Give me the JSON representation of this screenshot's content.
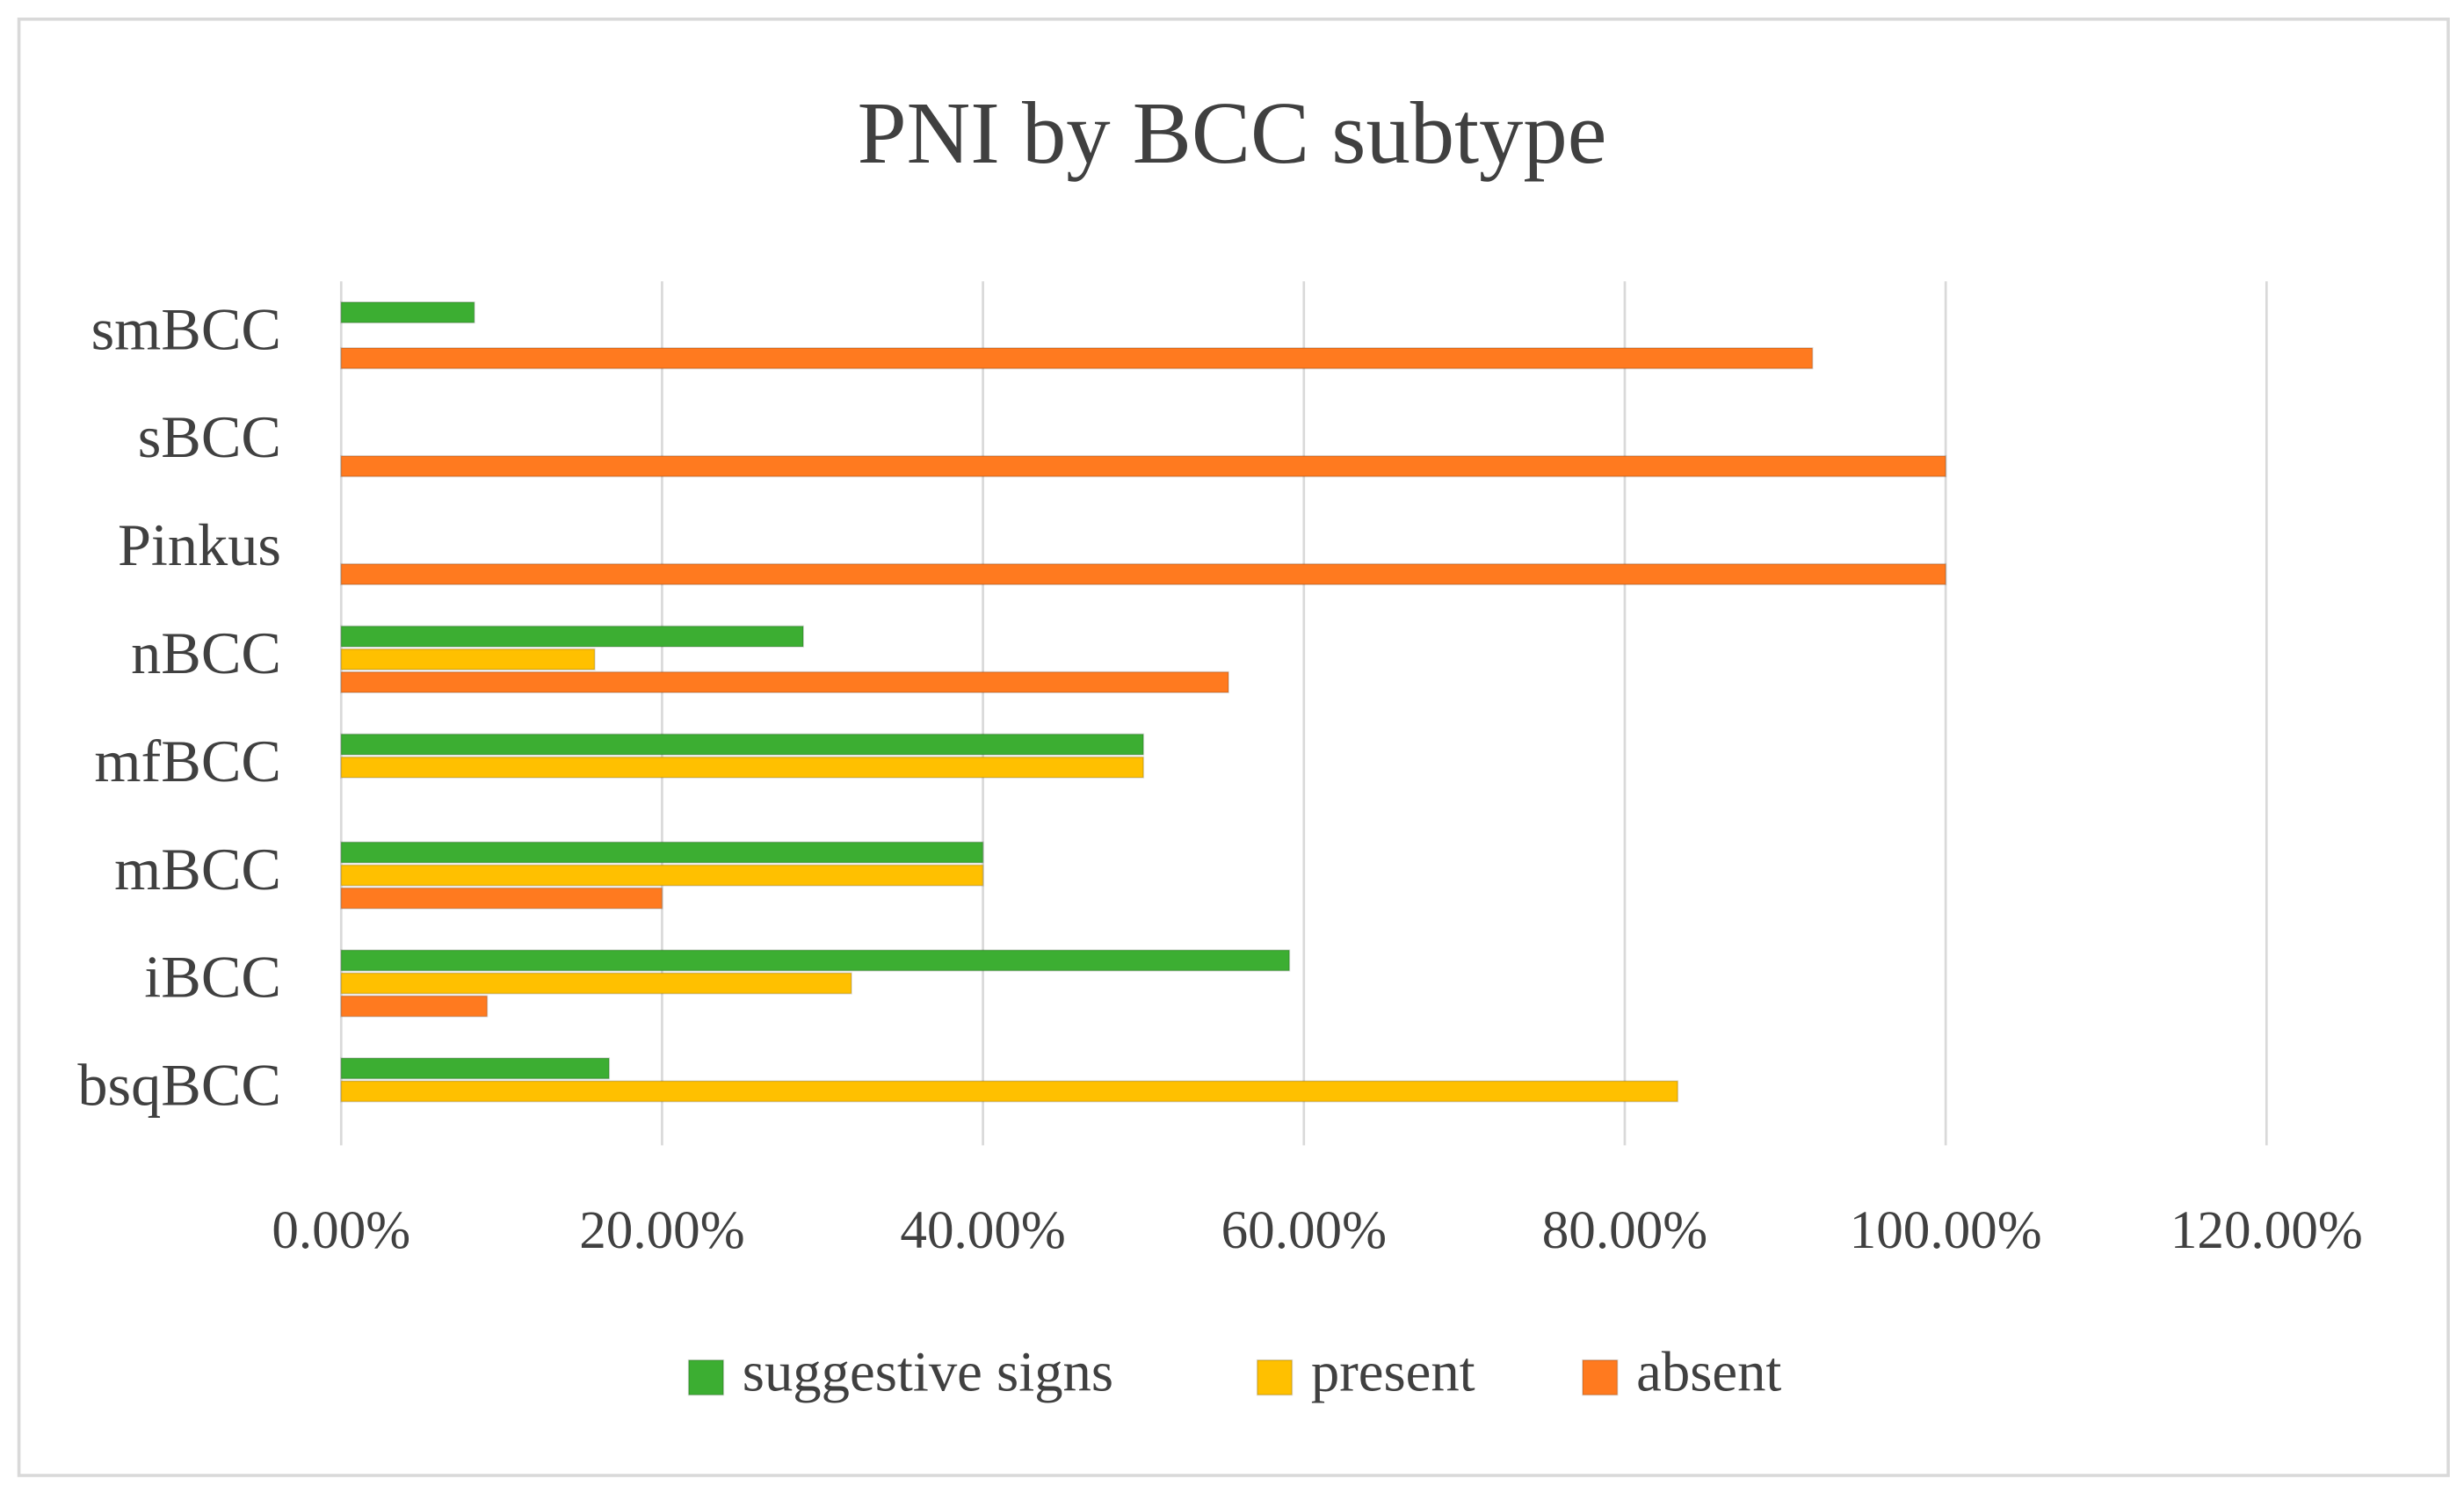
{
  "chart_data": {
    "type": "bar",
    "orientation": "horizontal",
    "title": "PNI by BCC subtype",
    "categories": [
      "bsqBCC",
      "iBCC",
      "mBCC",
      "mfBCC",
      "nBCC",
      "Pinkus",
      "sBCC",
      "smBCC"
    ],
    "series": [
      {
        "name": "suggestive signs",
        "color": "#3cae32",
        "values": [
          16.7,
          59.1,
          40,
          50,
          28.8,
          0,
          0,
          8.3
        ]
      },
      {
        "name": "present",
        "color": "#ffc000",
        "values": [
          83.3,
          31.8,
          40,
          50,
          15.8,
          0,
          0,
          0
        ]
      },
      {
        "name": "absent",
        "color": "#ff7a1f",
        "values": [
          0,
          9.1,
          20,
          0,
          55.3,
          100,
          100,
          91.7
        ]
      }
    ],
    "xlim": [
      0,
      120
    ],
    "xticks": [
      {
        "value": 0,
        "label": "0.00%"
      },
      {
        "value": 20,
        "label": "20.00%"
      },
      {
        "value": 40,
        "label": "40.00%"
      },
      {
        "value": 60,
        "label": "60.00%"
      },
      {
        "value": 80,
        "label": "80.00%"
      },
      {
        "value": 100,
        "label": "100.00%"
      },
      {
        "value": 120,
        "label": "120.00%"
      }
    ],
    "grid": true,
    "legend": "bottom"
  }
}
